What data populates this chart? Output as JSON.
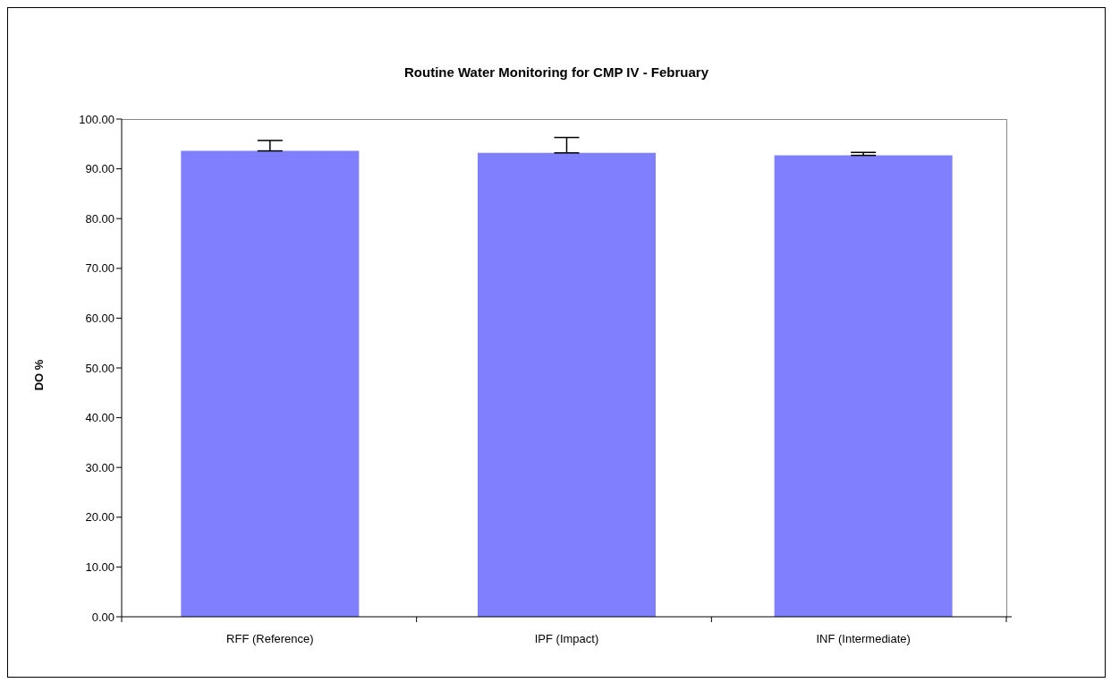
{
  "chart_data": {
    "type": "bar",
    "title": "Routine Water Monitoring for CMP IV - February",
    "ylabel": "DO %",
    "categories": [
      "RFF (Reference)",
      "IPF (Impact)",
      "INF (Intermediate)"
    ],
    "values": [
      93.6,
      93.2,
      92.7
    ],
    "color": "#8080ff",
    "errors": [
      [
        93.6,
        95.7
      ],
      [
        93.2,
        96.3
      ],
      [
        92.7,
        93.3
      ]
    ],
    "ylim": [
      0,
      100
    ],
    "yticks": [
      {
        "value": 0,
        "label": "0.00"
      },
      {
        "value": 10,
        "label": "10.00"
      },
      {
        "value": 20,
        "label": "20.00"
      },
      {
        "value": 30,
        "label": "30.00"
      },
      {
        "value": 40,
        "label": "40.00"
      },
      {
        "value": 50,
        "label": "50.00"
      },
      {
        "value": 60,
        "label": "60.00"
      },
      {
        "value": 70,
        "label": "70.00"
      },
      {
        "value": 80,
        "label": "80.00"
      },
      {
        "value": 90,
        "label": "90.00"
      },
      {
        "value": 100,
        "label": "100.00"
      }
    ],
    "grid": false,
    "legend": false
  }
}
